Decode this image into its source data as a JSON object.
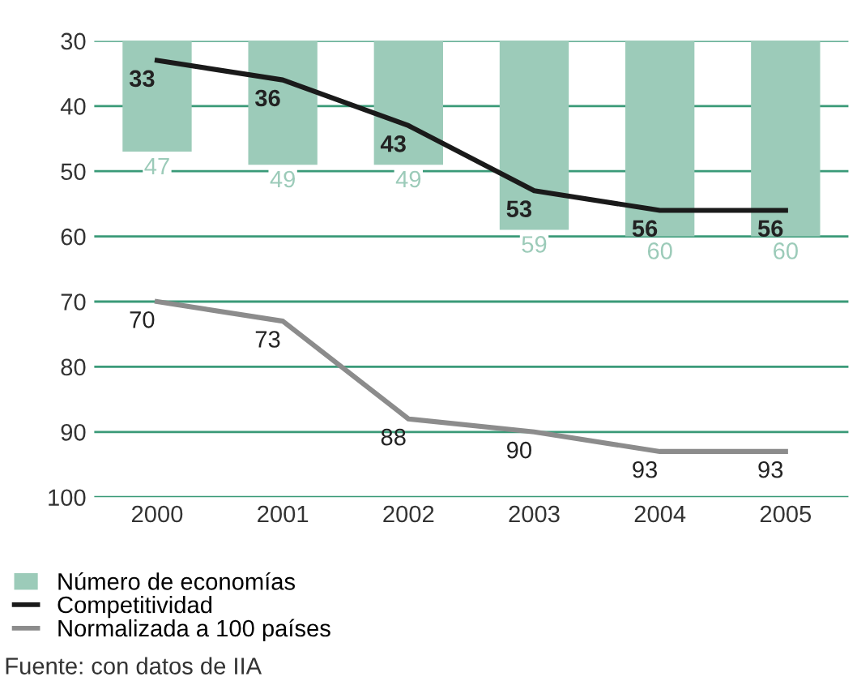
{
  "chart_data": {
    "type": "bar",
    "categories": [
      "2000",
      "2001",
      "2002",
      "2003",
      "2004",
      "2005"
    ],
    "series": [
      {
        "name": "Número de economías",
        "color": "#9ccbb9",
        "values": [
          47,
          49,
          49,
          59,
          60,
          60
        ]
      },
      {
        "name": "Competitividad",
        "type": "line",
        "color": "#1a1a1a",
        "values": [
          33,
          36,
          43,
          53,
          56,
          56
        ]
      },
      {
        "name": "Normalizada a 100 países",
        "type": "line",
        "color": "#8c8c8c",
        "values": [
          70,
          73,
          88,
          90,
          93,
          93
        ]
      }
    ],
    "ylim": [
      100,
      30
    ],
    "yticks": [
      30,
      40,
      50,
      60,
      70,
      80,
      90,
      100
    ],
    "grid": "y",
    "legend": "bottom",
    "data_labels": true,
    "marker": "none",
    "annotations": [
      "Fuente: con datos de IIA"
    ]
  }
}
